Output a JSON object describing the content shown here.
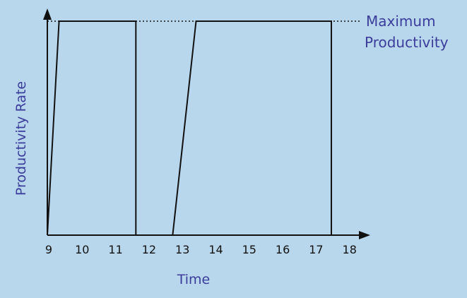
{
  "chart_data": {
    "type": "line",
    "title": "",
    "xlabel": "Time",
    "ylabel": "Productivity Rate",
    "xlim": [
      9,
      18.5
    ],
    "ylim": [
      0,
      1
    ],
    "x_ticks": [
      9,
      10,
      11,
      12,
      13,
      14,
      15,
      16,
      17,
      18
    ],
    "y_ticks": [],
    "grid": false,
    "legend": "none",
    "series": [
      {
        "values": [
          {
            "x": 9.0,
            "y": 0
          },
          {
            "x": 9.35,
            "y": 1
          },
          {
            "x": 11.65,
            "y": 1
          },
          {
            "x": 11.65,
            "y": 0
          },
          {
            "x": 12.75,
            "y": 0
          },
          {
            "x": 13.45,
            "y": 1
          },
          {
            "x": 17.5,
            "y": 1
          },
          {
            "x": 17.5,
            "y": 0
          }
        ]
      }
    ],
    "reference_line": {
      "y": 1,
      "style": "dotted",
      "label_lines": [
        "Maximum",
        "Productivity"
      ]
    },
    "colors": {
      "background": "#b9d7ec",
      "line": "#111111",
      "axis": "#111111",
      "label": "#3a3d9a",
      "tick_label": "#111111"
    }
  }
}
